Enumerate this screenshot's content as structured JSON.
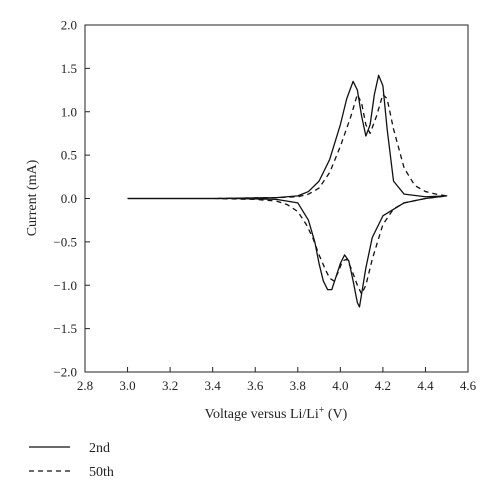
{
  "chart_data": {
    "type": "line",
    "title": "",
    "xlabel": "Voltage versus Li/Li",
    "xlabel_sup": "+",
    "xlabel_unit": " (V)",
    "ylabel": "Current (mA)",
    "xlim": [
      2.8,
      4.6
    ],
    "ylim": [
      -2.0,
      2.0
    ],
    "xticks": [
      "2.8",
      "3.0",
      "3.2",
      "3.4",
      "3.6",
      "3.8",
      "4.0",
      "4.2",
      "4.4",
      "4.6"
    ],
    "yticks": [
      "2.0",
      "1.5",
      "1.0",
      "0.5",
      "0.0",
      "−0.5",
      "−1.0",
      "−1.5",
      "−2.0"
    ],
    "grid": false,
    "legend_position": "bottom-left",
    "series": [
      {
        "name": "2nd",
        "style": "solid",
        "color": "#111111",
        "x": [
          3.0,
          3.4,
          3.7,
          3.8,
          3.85,
          3.9,
          3.95,
          4.0,
          4.03,
          4.06,
          4.08,
          4.1,
          4.12,
          4.14,
          4.16,
          4.18,
          4.2,
          4.22,
          4.25,
          4.3,
          4.4,
          4.5,
          4.5,
          4.4,
          4.3,
          4.2,
          4.15,
          4.12,
          4.1,
          4.09,
          4.08,
          4.06,
          4.04,
          4.02,
          4.0,
          3.98,
          3.96,
          3.94,
          3.92,
          3.9,
          3.88,
          3.85,
          3.8,
          3.7,
          3.5,
          3.0
        ],
        "y": [
          0.0,
          0.0,
          0.01,
          0.03,
          0.08,
          0.2,
          0.45,
          0.85,
          1.15,
          1.35,
          1.25,
          0.95,
          0.72,
          0.85,
          1.2,
          1.42,
          1.3,
          0.8,
          0.2,
          0.05,
          0.02,
          0.03,
          0.03,
          0.0,
          -0.05,
          -0.2,
          -0.45,
          -0.8,
          -1.1,
          -1.25,
          -1.2,
          -0.95,
          -0.72,
          -0.65,
          -0.75,
          -0.9,
          -1.05,
          -1.05,
          -0.95,
          -0.75,
          -0.5,
          -0.25,
          -0.05,
          -0.01,
          0.0,
          0.0
        ]
      },
      {
        "name": "50th",
        "style": "dashed",
        "color": "#111111",
        "x": [
          3.0,
          3.4,
          3.7,
          3.8,
          3.85,
          3.9,
          3.95,
          4.0,
          4.05,
          4.08,
          4.1,
          4.12,
          4.14,
          4.17,
          4.2,
          4.22,
          4.25,
          4.3,
          4.35,
          4.4,
          4.45,
          4.5,
          4.5,
          4.4,
          4.3,
          4.25,
          4.2,
          4.15,
          4.12,
          4.1,
          4.08,
          4.05,
          4.03,
          4.01,
          3.99,
          3.97,
          3.95,
          3.93,
          3.9,
          3.87,
          3.84,
          3.8,
          3.75,
          3.7,
          3.6,
          3.4,
          3.0
        ],
        "y": [
          0.0,
          0.0,
          0.01,
          0.02,
          0.05,
          0.12,
          0.3,
          0.6,
          0.95,
          1.2,
          1.1,
          0.85,
          0.75,
          0.95,
          1.2,
          1.15,
          0.8,
          0.35,
          0.15,
          0.08,
          0.05,
          0.03,
          0.03,
          0.0,
          -0.05,
          -0.12,
          -0.3,
          -0.7,
          -1.0,
          -1.1,
          -1.0,
          -0.8,
          -0.7,
          -0.72,
          -0.85,
          -0.95,
          -0.92,
          -0.82,
          -0.65,
          -0.45,
          -0.3,
          -0.15,
          -0.07,
          -0.03,
          -0.01,
          0.0,
          0.0
        ]
      }
    ]
  }
}
